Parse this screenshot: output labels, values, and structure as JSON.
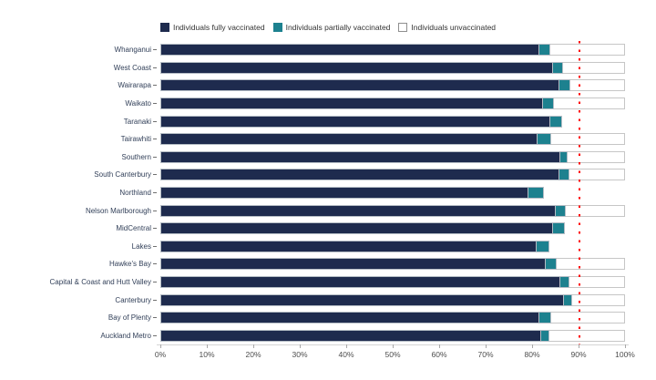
{
  "legend": {
    "items": [
      {
        "label": "Individuals fully vaccinated",
        "color": "#1e2b4e"
      },
      {
        "label": "Individuals partially vaccinated",
        "color": "#1d818f"
      },
      {
        "label": "Individuals unvaccinated",
        "color": "#ffffff"
      }
    ]
  },
  "chart_data": {
    "type": "bar",
    "orientation": "horizontal",
    "stacked": true,
    "title": "",
    "xlabel": "",
    "ylabel": "",
    "xlim": [
      0,
      100
    ],
    "grid": false,
    "legend_position": "top",
    "x_ticks": [
      "0%",
      "10%",
      "20%",
      "30%",
      "40%",
      "50%",
      "60%",
      "70%",
      "80%",
      "90%",
      "100%"
    ],
    "x_tick_values": [
      0,
      10,
      20,
      30,
      40,
      50,
      60,
      70,
      80,
      90,
      100
    ],
    "reference_line": {
      "value": 90,
      "color": "#ff0000",
      "style": "dotted"
    },
    "categories": [
      "Whanganui",
      "West Coast",
      "Wairarapa",
      "Waikato",
      "Taranaki",
      "Tairawhiti",
      "Southern",
      "South Canterbury",
      "Northland",
      "Nelson Marlborough",
      "MidCentral",
      "Lakes",
      "Hawke's Bay",
      "Capital & Coast and Hutt Valley",
      "Canterbury",
      "Bay of Plenty",
      "Auckland Metro"
    ],
    "series": [
      {
        "name": "Individuals fully vaccinated",
        "color": "#1e2b4e",
        "values": [
          81.3,
          84.4,
          85.7,
          82.2,
          83.8,
          81.0,
          85.9,
          85.6,
          79.0,
          84.9,
          84.4,
          80.7,
          82.8,
          85.9,
          86.7,
          81.4,
          81.7
        ]
      },
      {
        "name": "Individuals partially vaccinated",
        "color": "#1d818f",
        "values": [
          2.7,
          2.3,
          2.6,
          2.6,
          2.6,
          3.1,
          1.8,
          2.5,
          3.5,
          2.4,
          2.6,
          3.0,
          2.4,
          2.1,
          1.9,
          2.7,
          2.1
        ]
      },
      {
        "name": "Individuals unvaccinated",
        "color": "#ffffff",
        "values": [
          16.0,
          13.3,
          11.7,
          15.2,
          null,
          15.9,
          12.3,
          11.9,
          null,
          12.7,
          null,
          null,
          14.8,
          12.0,
          11.4,
          15.9,
          16.2
        ]
      }
    ]
  }
}
